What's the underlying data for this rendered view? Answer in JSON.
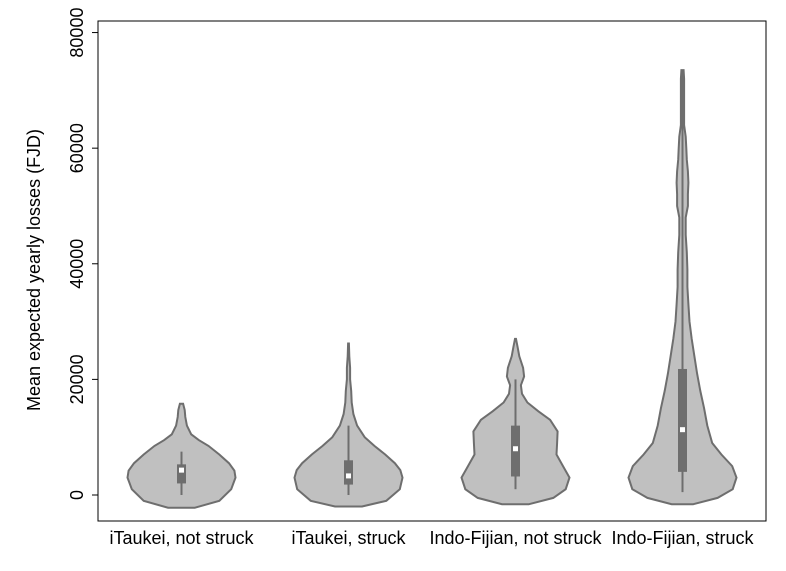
{
  "chart_data": {
    "type": "violin",
    "title": "",
    "xlabel": "",
    "ylabel": "Mean expected yearly losses (FJD)",
    "ylim": [
      -4500,
      82000
    ],
    "yticks": [
      0,
      20000,
      40000,
      60000,
      80000
    ],
    "ytick_labels": [
      "0",
      "20000",
      "40000",
      "60000",
      "80000"
    ],
    "grid": false,
    "legend": "none",
    "colors": {
      "fill": "#c0c0c0",
      "outline": "#6e6e6e",
      "box": "#6e6e6e",
      "median": "#ffffff"
    },
    "categories": [
      "iTaukei, not struck",
      "iTaukei, struck",
      "Indo-Fijian, not struck",
      "Indo-Fijian, struck"
    ],
    "series": [
      {
        "category": "iTaukei, not struck",
        "summary": {
          "whisker_low": 0,
          "q1": 2000,
          "median": 4300,
          "q3": 5300,
          "whisker_high": 7500
        },
        "density": {
          "y": [
            -2200,
            -1000,
            1000,
            3000,
            4200,
            5500,
            7000,
            8500,
            9500,
            10500,
            12000,
            13500,
            14700,
            15800
          ],
          "half_width": [
            0.25,
            0.7,
            0.92,
            1.0,
            0.98,
            0.88,
            0.7,
            0.5,
            0.32,
            0.18,
            0.1,
            0.07,
            0.06,
            0.03
          ]
        }
      },
      {
        "category": "iTaukei, struck",
        "summary": {
          "whisker_low": 0,
          "q1": 1800,
          "median": 3300,
          "q3": 6000,
          "whisker_high": 12000
        },
        "density": {
          "y": [
            -2000,
            -1000,
            1000,
            3000,
            4300,
            5500,
            7000,
            8500,
            10000,
            12000,
            14000,
            16000,
            18000,
            20000,
            22000,
            24000,
            26200
          ],
          "half_width": [
            0.25,
            0.7,
            0.95,
            1.0,
            0.96,
            0.86,
            0.68,
            0.48,
            0.3,
            0.16,
            0.09,
            0.06,
            0.05,
            0.03,
            0.03,
            0.015,
            0.008
          ]
        }
      },
      {
        "category": "Indo-Fijian, not struck",
        "summary": {
          "whisker_low": 1000,
          "q1": 3200,
          "median": 8000,
          "q3": 12000,
          "whisker_high": 20000
        },
        "density": {
          "y": [
            -1600,
            -500,
            1000,
            3000,
            5000,
            7000,
            9000,
            11000,
            13000,
            14500,
            16000,
            17500,
            19000,
            20500,
            22000,
            24000,
            25500,
            27000
          ],
          "half_width": [
            0.25,
            0.7,
            0.93,
            1.0,
            0.88,
            0.76,
            0.77,
            0.78,
            0.64,
            0.42,
            0.22,
            0.12,
            0.1,
            0.16,
            0.14,
            0.07,
            0.04,
            0.01
          ]
        }
      },
      {
        "category": "Indo-Fijian, struck",
        "summary": {
          "whisker_low": 500,
          "q1": 4000,
          "median": 11300,
          "q3": 21800,
          "whisker_high": 73500
        },
        "density": {
          "y": [
            -1600,
            -500,
            1000,
            3000,
            5000,
            7000,
            9000,
            12000,
            15000,
            18000,
            21000,
            24000,
            27000,
            30000,
            33000,
            36000,
            39000,
            42000,
            45000,
            48000,
            50000,
            52000,
            54000,
            56000,
            58000,
            60000,
            62000,
            64000,
            66000,
            68000,
            70000,
            72000,
            73500
          ],
          "half_width": [
            0.2,
            0.65,
            0.93,
            1.0,
            0.92,
            0.72,
            0.55,
            0.46,
            0.4,
            0.33,
            0.27,
            0.22,
            0.17,
            0.13,
            0.11,
            0.09,
            0.09,
            0.08,
            0.06,
            0.06,
            0.1,
            0.1,
            0.11,
            0.1,
            0.08,
            0.07,
            0.06,
            0.03,
            0.03,
            0.03,
            0.03,
            0.03,
            0.02
          ]
        }
      }
    ]
  }
}
